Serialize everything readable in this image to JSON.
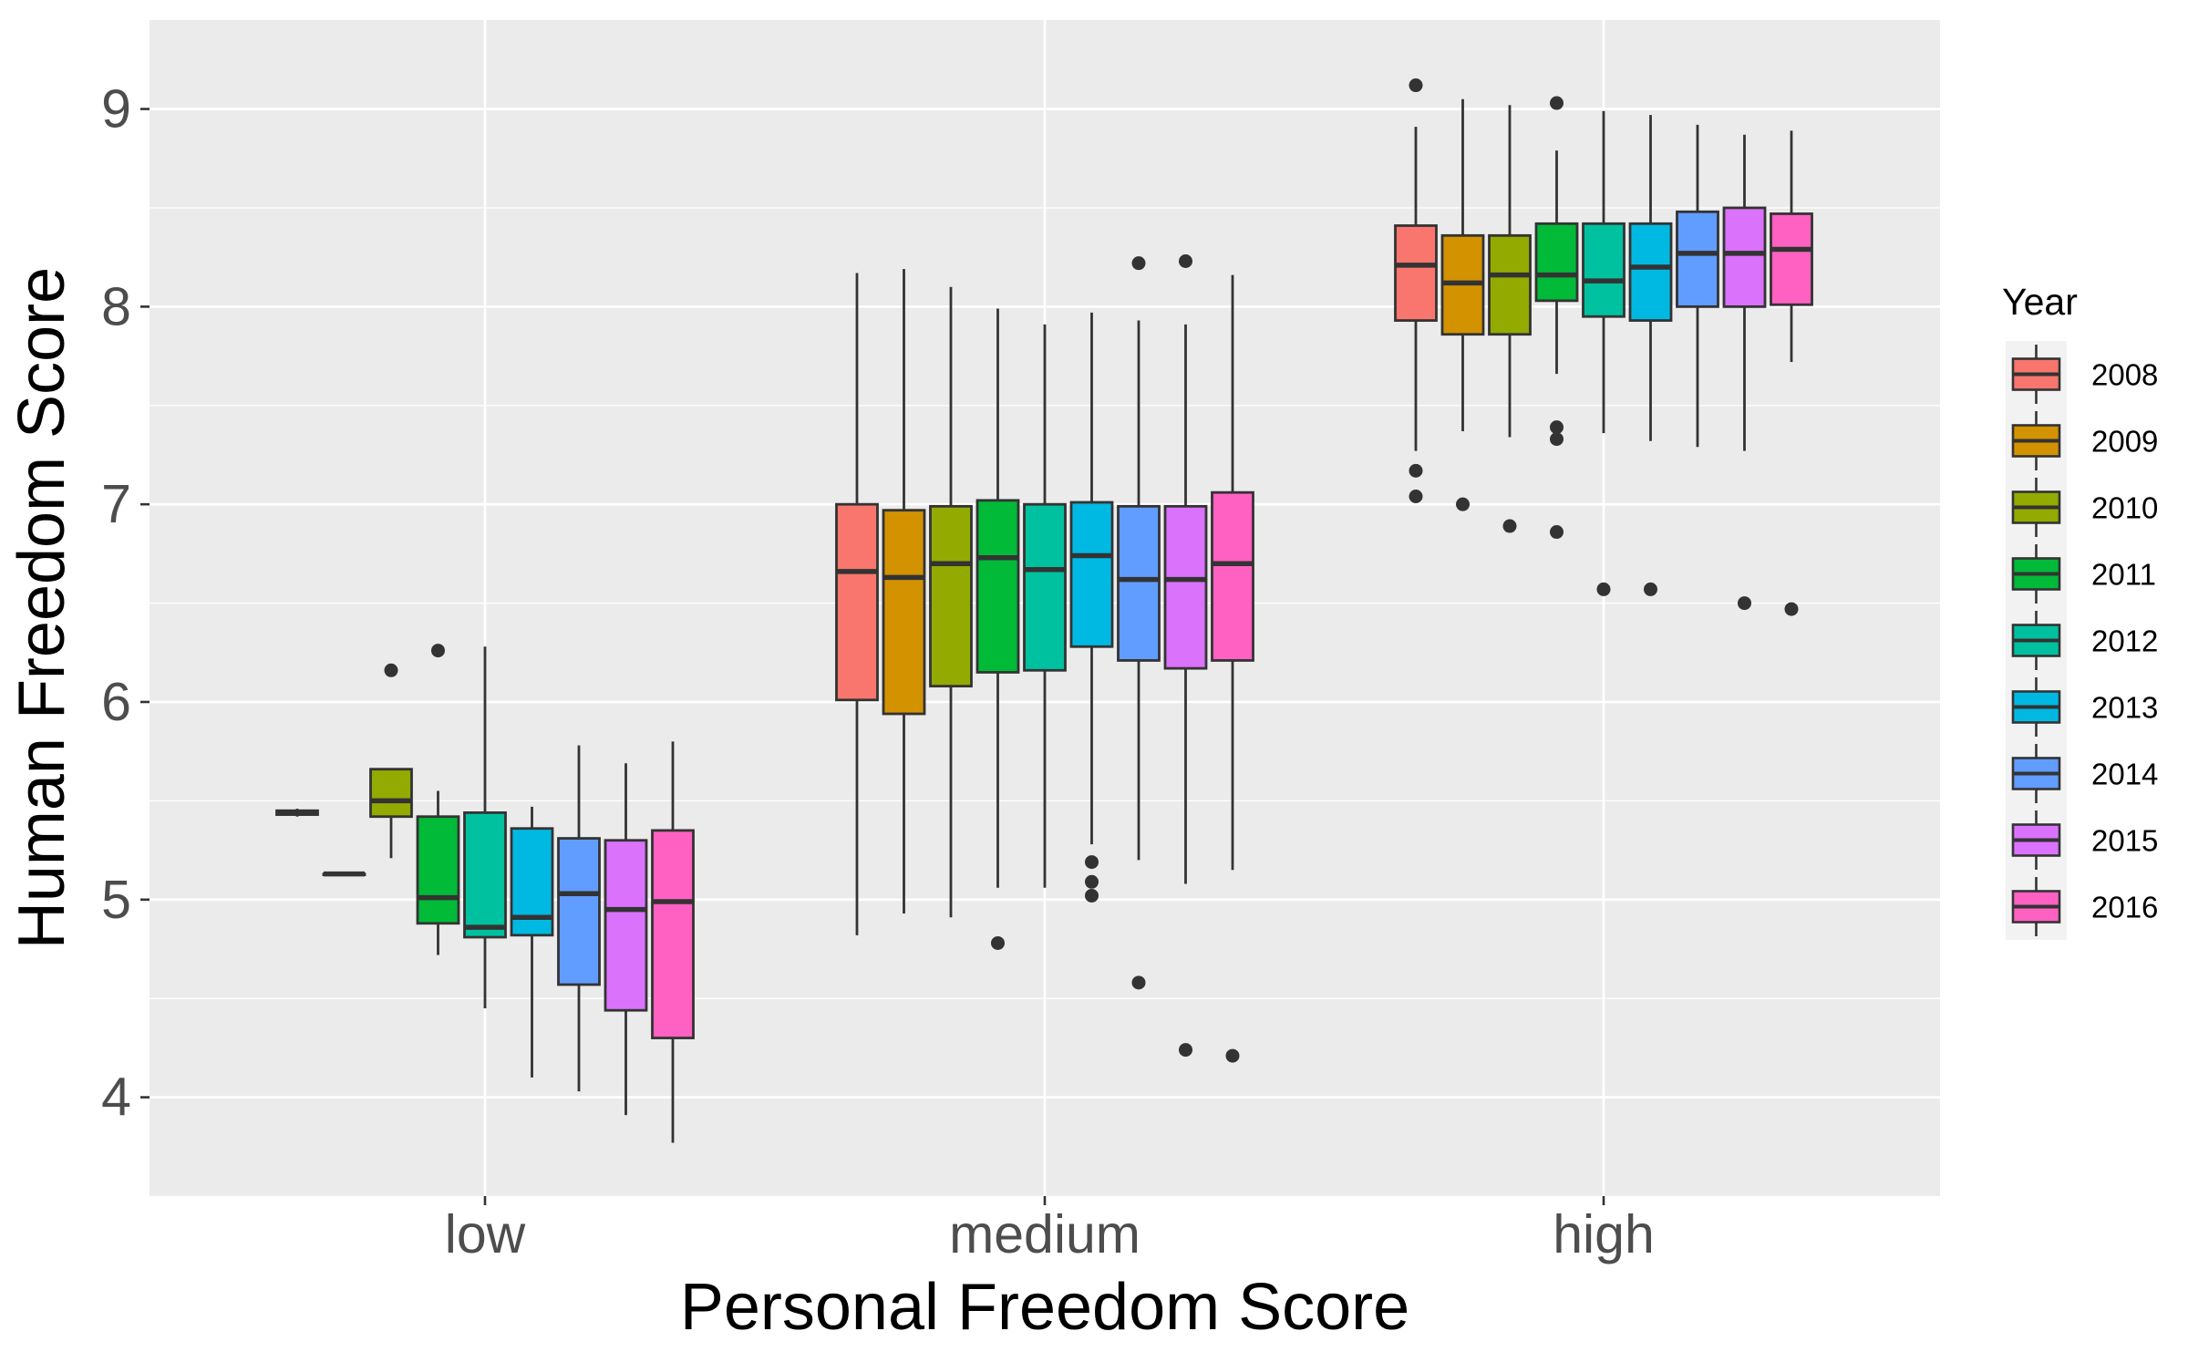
{
  "chart_data": {
    "type": "box",
    "xlabel": "Personal Freedom Score",
    "ylabel": "Human Freedom Score",
    "ylim": [
      3.5,
      9.45
    ],
    "yticks": [
      "4",
      "5",
      "6",
      "7",
      "8",
      "9"
    ],
    "categories": [
      "low",
      "medium",
      "high"
    ],
    "grid": true,
    "legend": {
      "title": "Year",
      "placement": "right",
      "labels": [
        "2008",
        "2009",
        "2010",
        "2011",
        "2012",
        "2013",
        "2014",
        "2015",
        "2016"
      ]
    },
    "colors": [
      "#F8766D",
      "#D39200",
      "#93AA00",
      "#00BA38",
      "#00C19F",
      "#00B9E3",
      "#619CFF",
      "#DB72FB",
      "#FF61C3"
    ],
    "series": [
      {
        "name": "2008",
        "boxes": [
          {
            "category": "low",
            "min": 5.42,
            "q1": 5.43,
            "median": 5.44,
            "q3": 5.45,
            "max": 5.46,
            "outliers": []
          },
          {
            "category": "medium",
            "min": 4.82,
            "q1": 6.01,
            "median": 6.66,
            "q3": 7.0,
            "max": 8.17,
            "outliers": []
          },
          {
            "category": "high",
            "min": 7.27,
            "q1": 7.93,
            "median": 8.21,
            "q3": 8.41,
            "max": 8.91,
            "outliers": [
              9.12,
              7.17,
              7.04
            ]
          }
        ]
      },
      {
        "name": "2009",
        "boxes": [
          {
            "category": "low",
            "min": 5.13,
            "q1": 5.13,
            "median": 5.13,
            "q3": 5.13,
            "max": 5.13,
            "outliers": []
          },
          {
            "category": "medium",
            "min": 4.93,
            "q1": 5.94,
            "median": 6.63,
            "q3": 6.97,
            "max": 8.19,
            "outliers": []
          },
          {
            "category": "high",
            "min": 7.37,
            "q1": 7.86,
            "median": 8.12,
            "q3": 8.36,
            "max": 9.05,
            "outliers": [
              7.0
            ]
          }
        ]
      },
      {
        "name": "2010",
        "boxes": [
          {
            "category": "low",
            "min": 5.21,
            "q1": 5.42,
            "median": 5.5,
            "q3": 5.66,
            "max": 5.66,
            "outliers": [
              6.16
            ]
          },
          {
            "category": "medium",
            "min": 4.91,
            "q1": 6.08,
            "median": 6.7,
            "q3": 6.99,
            "max": 8.1,
            "outliers": []
          },
          {
            "category": "high",
            "min": 7.34,
            "q1": 7.86,
            "median": 8.16,
            "q3": 8.36,
            "max": 9.02,
            "outliers": [
              6.89
            ]
          }
        ]
      },
      {
        "name": "2011",
        "boxes": [
          {
            "category": "low",
            "min": 4.72,
            "q1": 4.88,
            "median": 5.01,
            "q3": 5.42,
            "max": 5.55,
            "outliers": [
              6.26
            ]
          },
          {
            "category": "medium",
            "min": 5.06,
            "q1": 6.15,
            "median": 6.73,
            "q3": 7.02,
            "max": 7.99,
            "outliers": [
              4.78
            ]
          },
          {
            "category": "high",
            "min": 7.66,
            "q1": 8.03,
            "median": 8.16,
            "q3": 8.42,
            "max": 8.79,
            "outliers": [
              9.03,
              7.39,
              7.33,
              6.86
            ]
          }
        ]
      },
      {
        "name": "2012",
        "boxes": [
          {
            "category": "low",
            "min": 4.45,
            "q1": 4.81,
            "median": 4.86,
            "q3": 5.44,
            "max": 6.28,
            "outliers": []
          },
          {
            "category": "medium",
            "min": 5.06,
            "q1": 6.16,
            "median": 6.67,
            "q3": 7.0,
            "max": 7.91,
            "outliers": []
          },
          {
            "category": "high",
            "min": 7.36,
            "q1": 7.95,
            "median": 8.13,
            "q3": 8.42,
            "max": 8.99,
            "outliers": [
              6.57
            ]
          }
        ]
      },
      {
        "name": "2013",
        "boxes": [
          {
            "category": "low",
            "min": 4.1,
            "q1": 4.82,
            "median": 4.91,
            "q3": 5.36,
            "max": 5.47,
            "outliers": []
          },
          {
            "category": "medium",
            "min": 5.28,
            "q1": 6.28,
            "median": 6.74,
            "q3": 7.01,
            "max": 7.97,
            "outliers": [
              5.19,
              5.09,
              5.02
            ]
          },
          {
            "category": "high",
            "min": 7.32,
            "q1": 7.93,
            "median": 8.2,
            "q3": 8.42,
            "max": 8.97,
            "outliers": [
              6.57
            ]
          }
        ]
      },
      {
        "name": "2014",
        "boxes": [
          {
            "category": "low",
            "min": 4.03,
            "q1": 4.57,
            "median": 5.03,
            "q3": 5.31,
            "max": 5.78,
            "outliers": []
          },
          {
            "category": "medium",
            "min": 5.2,
            "q1": 6.21,
            "median": 6.62,
            "q3": 6.99,
            "max": 7.93,
            "outliers": [
              8.22,
              4.58
            ]
          },
          {
            "category": "high",
            "min": 7.29,
            "q1": 8.0,
            "median": 8.27,
            "q3": 8.48,
            "max": 8.92,
            "outliers": []
          }
        ]
      },
      {
        "name": "2015",
        "boxes": [
          {
            "category": "low",
            "min": 3.91,
            "q1": 4.44,
            "median": 4.95,
            "q3": 5.3,
            "max": 5.69,
            "outliers": []
          },
          {
            "category": "medium",
            "min": 5.08,
            "q1": 6.17,
            "median": 6.62,
            "q3": 6.99,
            "max": 7.91,
            "outliers": [
              8.23,
              4.24
            ]
          },
          {
            "category": "high",
            "min": 7.27,
            "q1": 8.0,
            "median": 8.27,
            "q3": 8.5,
            "max": 8.87,
            "outliers": [
              6.5
            ]
          }
        ]
      },
      {
        "name": "2016",
        "boxes": [
          {
            "category": "low",
            "min": 3.77,
            "q1": 4.3,
            "median": 4.99,
            "q3": 5.35,
            "max": 5.8,
            "outliers": []
          },
          {
            "category": "medium",
            "min": 5.15,
            "q1": 6.21,
            "median": 6.7,
            "q3": 7.06,
            "max": 8.16,
            "outliers": [
              4.21
            ]
          },
          {
            "category": "high",
            "min": 7.72,
            "q1": 8.01,
            "median": 8.29,
            "q3": 8.47,
            "max": 8.89,
            "outliers": [
              6.47
            ]
          }
        ]
      }
    ]
  }
}
